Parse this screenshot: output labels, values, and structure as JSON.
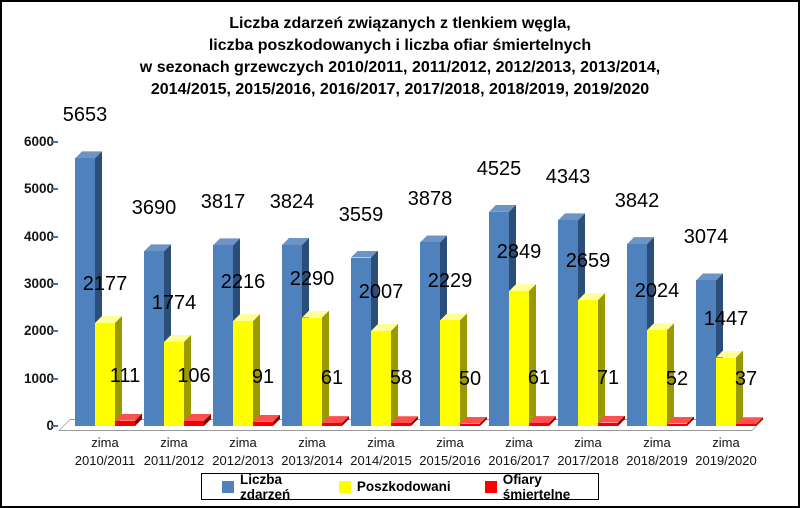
{
  "title": {
    "lines": [
      "Liczba zdarzeń związanych z tlenkiem węgla,",
      "liczba poszkodowanych i liczba ofiar śmiertelnych",
      "w sezonach grzewczych 2010/2011, 2011/2012, 2012/2013, 2013/2014,",
      "2014/2015, 2015/2016, 2016/2017, 2017/2018, 2018/2019, 2019/2020"
    ],
    "color": "#000000"
  },
  "chart_data": {
    "type": "bar",
    "style": "3d-column",
    "title": "Liczba zdarzeń związanych z tlenkiem węgla, liczba poszkodowanych i liczba ofiar śmiertelnych w sezonach grzewczych 2010/2011, 2011/2012, 2012/2013, 2013/2014, 2014/2015, 2015/2016, 2016/2017, 2017/2018, 2018/2019, 2019/2020",
    "categories": [
      "zima 2010/2011",
      "zima 2011/2012",
      "zima 2012/2013",
      "zima 2013/2014",
      "zima 2014/2015",
      "zima 2015/2016",
      "zima 2016/2017",
      "zima 2017/2018",
      "zima 2018/2019",
      "zima 2019/2020"
    ],
    "series": [
      {
        "name": "Liczba zdarzeń",
        "color": "#4F81BD",
        "color_top": "#6D94C4",
        "color_side": "#2B4E78",
        "values": [
          5653,
          3690,
          3817,
          3824,
          3559,
          3878,
          4525,
          4343,
          3842,
          3074
        ]
      },
      {
        "name": "Poszkodowani",
        "color": "#FFFF00",
        "color_top": "#FFFF99",
        "color_side": "#9A9A00",
        "values": [
          2177,
          1774,
          2216,
          2290,
          2007,
          2229,
          2849,
          2659,
          2024,
          1447
        ]
      },
      {
        "name": "Ofiary śmiertelne",
        "color": "#F40000",
        "color_top": "#FF5050",
        "color_side": "#8A0000",
        "values": [
          111,
          106,
          91,
          61,
          58,
          50,
          61,
          71,
          52,
          37
        ]
      }
    ],
    "yticks": [
      0,
      1000,
      2000,
      3000,
      4000,
      5000,
      6000
    ],
    "ylim": [
      0,
      6000
    ],
    "grid": false,
    "data_labels": true,
    "legend_position": "bottom"
  },
  "axis": {
    "tick_color": "#4A6FA5",
    "label_color": "#141414"
  },
  "legend": {
    "border_color": "#000000"
  }
}
